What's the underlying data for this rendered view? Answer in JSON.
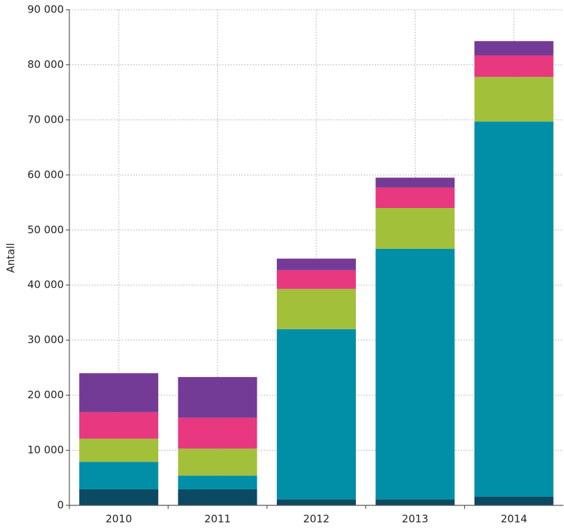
{
  "chart_data": {
    "type": "stacked-bar",
    "y_label": "Antall",
    "categories": [
      "2010",
      "2011",
      "2012",
      "2013",
      "2014"
    ],
    "series": [
      {
        "color": "#0b4a62",
        "values": [
          2900,
          2900,
          1100,
          1100,
          1600
        ]
      },
      {
        "color": "#008fa6",
        "values": [
          5000,
          2500,
          30900,
          45500,
          68100
        ]
      },
      {
        "color": "#a3c03b",
        "values": [
          4200,
          4900,
          7300,
          7400,
          8100
        ]
      },
      {
        "color": "#e8387f",
        "values": [
          4800,
          5600,
          3400,
          3700,
          3900
        ]
      },
      {
        "color": "#743b96",
        "values": [
          7100,
          7400,
          2100,
          1800,
          2600
        ]
      }
    ],
    "ylim": [
      0,
      90000
    ],
    "yticks": [
      0,
      {
        "value": 10000,
        "label": "10 000"
      },
      {
        "value": 20000,
        "label": "20 000"
      },
      {
        "value": 30000,
        "label": "30 000"
      },
      {
        "value": 40000,
        "label": "40 000"
      },
      {
        "value": 50000,
        "label": "50 000"
      },
      {
        "value": 60000,
        "label": "60 000"
      },
      {
        "value": 70000,
        "label": "70 000"
      },
      {
        "value": 80000,
        "label": "80 000"
      },
      {
        "value": 90000,
        "label": "90 000"
      }
    ],
    "grid": true
  }
}
